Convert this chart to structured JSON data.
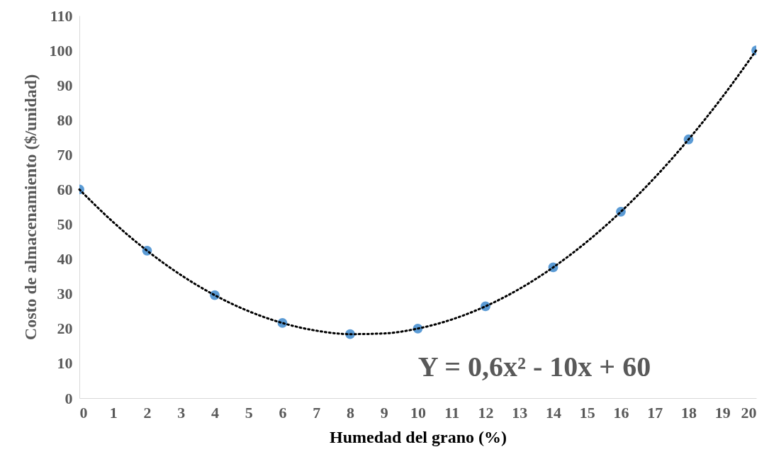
{
  "chart_data": {
    "type": "scatter",
    "xlabel": "Humedad del grano (%)",
    "ylabel": "Costo de almacenamiento ($/unidad)",
    "annotations": [
      "Y = 0,6x² - 10x + 60"
    ],
    "xlim": [
      0,
      20
    ],
    "xticks": [
      0,
      1,
      2,
      3,
      4,
      5,
      6,
      7,
      8,
      9,
      10,
      11,
      12,
      13,
      14,
      15,
      16,
      17,
      18,
      19,
      20
    ],
    "ylim": [
      0,
      110
    ],
    "yticks": [
      0,
      10,
      20,
      30,
      40,
      50,
      60,
      70,
      80,
      90,
      100,
      110
    ],
    "series": [
      {
        "marker": "circle",
        "color": "#5b9bd5",
        "x": [
          0,
          2,
          4,
          6,
          8,
          10,
          12,
          14,
          16,
          18,
          20
        ],
        "values": [
          60,
          42.4,
          29.6,
          21.6,
          18.4,
          20,
          26.4,
          37.6,
          53.6,
          74.4,
          100
        ]
      },
      {
        "type": "line",
        "color": "#000000",
        "line_style": "dotted",
        "x": [
          0,
          1,
          2,
          3,
          4,
          5,
          6,
          7,
          8,
          9,
          10,
          11,
          12,
          13,
          14,
          15,
          16,
          17,
          18,
          19,
          20
        ],
        "values": [
          60,
          50.6,
          42.4,
          35.4,
          29.6,
          25,
          21.6,
          19.4,
          18.4,
          18.6,
          20,
          22.6,
          26.4,
          31.4,
          37.6,
          45,
          53.6,
          63.4,
          74.4,
          86.6,
          100
        ]
      }
    ]
  }
}
